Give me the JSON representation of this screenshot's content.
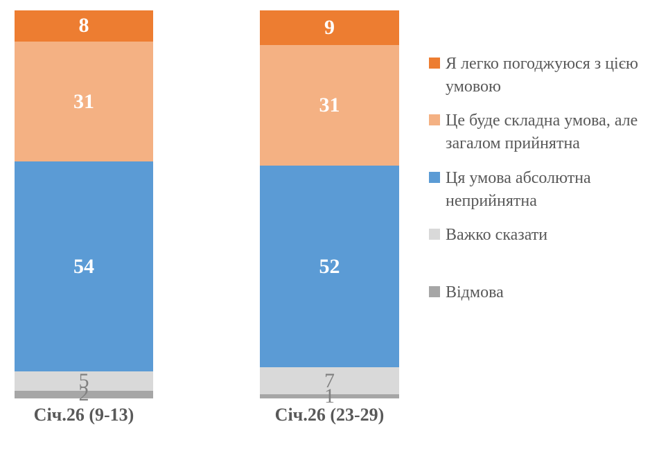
{
  "chart_data": {
    "type": "bar",
    "subtype": "stacked-column-100",
    "title": "",
    "categories": [
      "Січ.26 (9-13)",
      "Січ.26 (23-29)"
    ],
    "series": [
      {
        "name": "Я легко погоджуюся з цією умовою",
        "values": [
          8,
          9
        ],
        "color": "#ED7D31",
        "label_color": "#FFFFFF",
        "label_weight": "bold"
      },
      {
        "name": "Це буде складна умова, але загалом прийнятна",
        "values": [
          31,
          31
        ],
        "color": "#F4B183",
        "label_color": "#FFFFFF",
        "label_weight": "bold"
      },
      {
        "name": "Ця умова абсолютна неприйнятна",
        "values": [
          54,
          52
        ],
        "color": "#5B9BD5",
        "label_color": "#FFFFFF",
        "label_weight": "bold"
      },
      {
        "name": "Важко сказати",
        "values": [
          5,
          7
        ],
        "color": "#D9D9D9",
        "label_color": "#808080",
        "label_weight": "normal"
      },
      {
        "name": "Відмова",
        "values": [
          2,
          1
        ],
        "color": "#A6A6A6",
        "label_color": "#808080",
        "label_weight": "normal"
      }
    ],
    "stack_total": 100,
    "data_labels_visible": true,
    "legend_position": "right",
    "axes_visible": false,
    "gridlines_visible": false,
    "text_color": "#595959",
    "background": "#FFFFFF"
  }
}
